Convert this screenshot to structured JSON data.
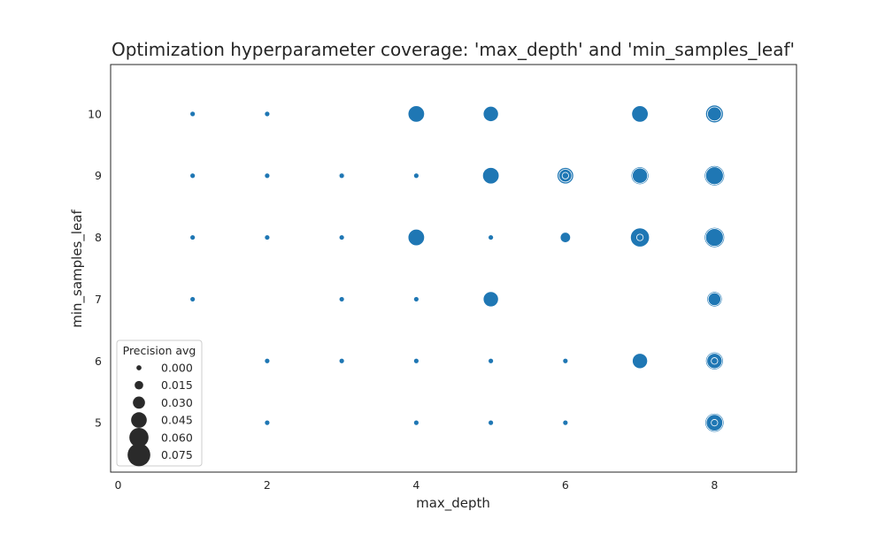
{
  "chart_data": {
    "type": "scatter",
    "title": "Optimization hyperparameter coverage: 'max_depth' and 'min_samples_leaf'",
    "xlabel": "max_depth",
    "ylabel": "min_samples_leaf",
    "xlim": [
      -0.1,
      9.1
    ],
    "ylim": [
      4.2,
      10.8
    ],
    "xticks": [
      "0",
      "2",
      "4",
      "6",
      "8"
    ],
    "yticks": [
      "5",
      "6",
      "7",
      "8",
      "9",
      "10"
    ],
    "grid": false,
    "legend": {
      "title": "Precision avg",
      "placement": "lower-left",
      "entries": [
        "0.000",
        "0.015",
        "0.030",
        "0.045",
        "0.060",
        "0.075"
      ]
    },
    "colors": {
      "marker": "#1f77b4",
      "legend_marker": "#2a2a2a",
      "frame": "#262626"
    },
    "points": [
      {
        "x": 1,
        "y": 10,
        "v": 0.0
      },
      {
        "x": 2,
        "y": 10,
        "v": 0.0
      },
      {
        "x": 4,
        "y": 10,
        "v": 0.045
      },
      {
        "x": 5,
        "y": 10,
        "v": 0.04
      },
      {
        "x": 7,
        "y": 10,
        "v": 0.045
      },
      {
        "x": 8,
        "y": 10,
        "v": 0.05
      },
      {
        "x": 8,
        "y": 10,
        "v": 0.035
      },
      {
        "x": 1,
        "y": 9,
        "v": 0.0
      },
      {
        "x": 2,
        "y": 9,
        "v": 0.0
      },
      {
        "x": 3,
        "y": 9,
        "v": 0.005
      },
      {
        "x": 3,
        "y": 9,
        "v": 0.0
      },
      {
        "x": 4,
        "y": 9,
        "v": 0.0
      },
      {
        "x": 5,
        "y": 9,
        "v": 0.045
      },
      {
        "x": 6,
        "y": 9,
        "v": 0.045
      },
      {
        "x": 6,
        "y": 9,
        "v": 0.03
      },
      {
        "x": 6,
        "y": 9,
        "v": 0.005
      },
      {
        "x": 7,
        "y": 9,
        "v": 0.05
      },
      {
        "x": 7,
        "y": 9,
        "v": 0.04
      },
      {
        "x": 8,
        "y": 9,
        "v": 0.06
      },
      {
        "x": 8,
        "y": 9,
        "v": 0.05
      },
      {
        "x": 1,
        "y": 8,
        "v": 0.0
      },
      {
        "x": 2,
        "y": 8,
        "v": 0.003
      },
      {
        "x": 2,
        "y": 8,
        "v": 0.0
      },
      {
        "x": 3,
        "y": 8,
        "v": 0.0
      },
      {
        "x": 4,
        "y": 8,
        "v": 0.045
      },
      {
        "x": 5,
        "y": 8,
        "v": 0.0
      },
      {
        "x": 6,
        "y": 8,
        "v": 0.02
      },
      {
        "x": 7,
        "y": 8,
        "v": 0.055
      },
      {
        "x": 7,
        "y": 8,
        "v": 0.005
      },
      {
        "x": 8,
        "y": 8,
        "v": 0.06
      },
      {
        "x": 8,
        "y": 8,
        "v": 0.05
      },
      {
        "x": 1,
        "y": 7,
        "v": 0.0
      },
      {
        "x": 3,
        "y": 7,
        "v": 0.0
      },
      {
        "x": 4,
        "y": 7,
        "v": 0.0
      },
      {
        "x": 5,
        "y": 7,
        "v": 0.04
      },
      {
        "x": 8,
        "y": 7,
        "v": 0.04
      },
      {
        "x": 8,
        "y": 7,
        "v": 0.03
      },
      {
        "x": 2,
        "y": 6,
        "v": 0.0
      },
      {
        "x": 3,
        "y": 6,
        "v": 0.0
      },
      {
        "x": 4,
        "y": 6,
        "v": 0.0
      },
      {
        "x": 5,
        "y": 6,
        "v": 0.0
      },
      {
        "x": 6,
        "y": 6,
        "v": 0.0
      },
      {
        "x": 7,
        "y": 6,
        "v": 0.04
      },
      {
        "x": 8,
        "y": 6,
        "v": 0.05
      },
      {
        "x": 8,
        "y": 6,
        "v": 0.04
      },
      {
        "x": 8,
        "y": 6,
        "v": 0.005
      },
      {
        "x": 2,
        "y": 5,
        "v": 0.0
      },
      {
        "x": 4,
        "y": 5,
        "v": 0.0
      },
      {
        "x": 5,
        "y": 5,
        "v": 0.0
      },
      {
        "x": 6,
        "y": 5,
        "v": 0.0
      },
      {
        "x": 8,
        "y": 5,
        "v": 0.055
      },
      {
        "x": 8,
        "y": 5,
        "v": 0.045
      },
      {
        "x": 8,
        "y": 5,
        "v": 0.005
      }
    ]
  }
}
